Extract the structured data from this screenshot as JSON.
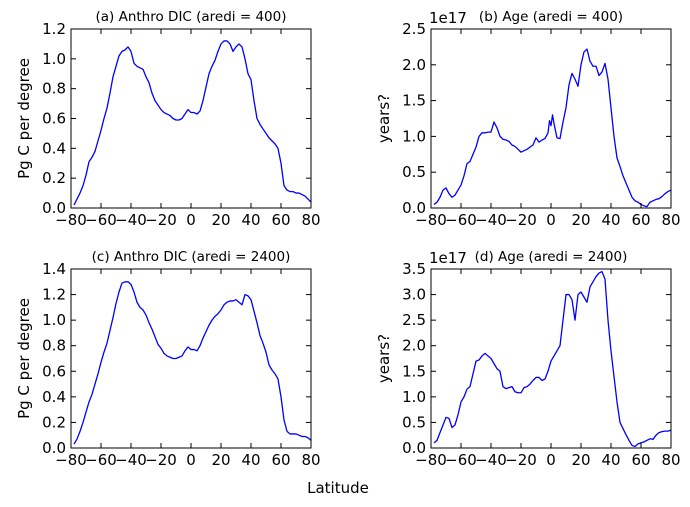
{
  "figure": {
    "xlabel": "Latitude"
  },
  "chart_data": [
    {
      "type": "line",
      "title": "(a) Anthro DIC (aredi = 400)",
      "xlabel": "",
      "ylabel": "Pg C per degree",
      "xlim": [
        -80,
        80
      ],
      "ylim": [
        0,
        1.2
      ],
      "xticks": [
        -80,
        -60,
        -40,
        -20,
        0,
        20,
        40,
        60,
        80
      ],
      "xtick_labels": [
        "−80",
        "−60",
        "−40",
        "−20",
        "0",
        "20",
        "40",
        "60",
        "80"
      ],
      "yticks": [
        0,
        0.2,
        0.4,
        0.6,
        0.8,
        1.0,
        1.2
      ],
      "ytick_labels": [
        "0.0",
        "0.2",
        "0.4",
        "0.6",
        "0.8",
        "1.0",
        "1.2"
      ],
      "offset_text": "",
      "grid": false,
      "color": "#0000ff",
      "series": [
        {
          "x": [
            -78,
            -76,
            -74,
            -72,
            -70,
            -68,
            -66,
            -64,
            -62,
            -60,
            -58,
            -56,
            -54,
            -52,
            -50,
            -48,
            -46,
            -44,
            -42,
            -40,
            -38,
            -36,
            -34,
            -32,
            -30,
            -28,
            -26,
            -24,
            -22,
            -20,
            -18,
            -16,
            -14,
            -12,
            -10,
            -8,
            -6,
            -4,
            -2,
            0,
            2,
            4,
            6,
            8,
            10,
            12,
            14,
            16,
            18,
            20,
            22,
            24,
            26,
            28,
            30,
            32,
            34,
            36,
            38,
            40,
            42,
            44,
            46,
            48,
            50,
            52,
            54,
            56,
            58,
            60,
            62,
            64,
            66,
            68,
            70,
            72,
            74,
            76,
            78,
            80
          ],
          "y": [
            0.02,
            0.06,
            0.1,
            0.15,
            0.22,
            0.31,
            0.34,
            0.38,
            0.45,
            0.52,
            0.6,
            0.67,
            0.77,
            0.88,
            0.95,
            1.02,
            1.05,
            1.06,
            1.08,
            1.05,
            0.97,
            0.95,
            0.94,
            0.93,
            0.88,
            0.84,
            0.77,
            0.72,
            0.69,
            0.66,
            0.64,
            0.63,
            0.62,
            0.6,
            0.59,
            0.59,
            0.6,
            0.63,
            0.66,
            0.64,
            0.64,
            0.63,
            0.65,
            0.72,
            0.81,
            0.9,
            0.95,
            0.99,
            1.05,
            1.1,
            1.12,
            1.12,
            1.1,
            1.05,
            1.08,
            1.1,
            1.08,
            1.0,
            0.9,
            0.86,
            0.72,
            0.6,
            0.56,
            0.53,
            0.5,
            0.47,
            0.45,
            0.43,
            0.4,
            0.3,
            0.15,
            0.12,
            0.11,
            0.11,
            0.1,
            0.1,
            0.09,
            0.08,
            0.06,
            0.04
          ]
        }
      ]
    },
    {
      "type": "line",
      "title": "(b) Age (aredi = 400)",
      "xlabel": "",
      "ylabel": "years?",
      "xlim": [
        -80,
        80
      ],
      "ylim": [
        0,
        2.5
      ],
      "xticks": [
        -80,
        -60,
        -40,
        -20,
        0,
        20,
        40,
        60,
        80
      ],
      "xtick_labels": [
        "−80",
        "−60",
        "−40",
        "−20",
        "0",
        "20",
        "40",
        "60",
        "80"
      ],
      "yticks": [
        0,
        0.5,
        1.0,
        1.5,
        2.0,
        2.5
      ],
      "ytick_labels": [
        "0.0",
        "0.5",
        "1.0",
        "1.5",
        "2.0",
        "2.5"
      ],
      "offset_text": "1e17",
      "grid": false,
      "color": "#0000ff",
      "series": [
        {
          "x": [
            -78,
            -76,
            -74,
            -72,
            -70,
            -68,
            -66,
            -64,
            -62,
            -60,
            -58,
            -56,
            -54,
            -52,
            -50,
            -48,
            -46,
            -44,
            -42,
            -40,
            -38,
            -36,
            -34,
            -32,
            -30,
            -28,
            -26,
            -24,
            -22,
            -20,
            -18,
            -16,
            -14,
            -12,
            -10,
            -8,
            -6,
            -4,
            -2,
            -1,
            0,
            1,
            2,
            4,
            6,
            8,
            10,
            12,
            14,
            16,
            18,
            20,
            22,
            24,
            26,
            28,
            30,
            32,
            34,
            36,
            38,
            40,
            42,
            44,
            46,
            48,
            50,
            52,
            54,
            56,
            58,
            60,
            62,
            64,
            66,
            68,
            70,
            72,
            74,
            76,
            78,
            80
          ],
          "y": [
            0.05,
            0.08,
            0.15,
            0.25,
            0.28,
            0.2,
            0.15,
            0.18,
            0.25,
            0.32,
            0.45,
            0.62,
            0.65,
            0.75,
            0.85,
            1.0,
            1.05,
            1.05,
            1.06,
            1.06,
            1.2,
            1.12,
            1.0,
            0.96,
            0.95,
            0.93,
            0.88,
            0.86,
            0.82,
            0.78,
            0.8,
            0.82,
            0.85,
            0.88,
            0.98,
            0.92,
            0.95,
            0.97,
            1.05,
            1.22,
            1.15,
            1.3,
            1.18,
            0.98,
            0.97,
            1.2,
            1.4,
            1.72,
            1.88,
            1.8,
            1.7,
            2.0,
            2.18,
            2.22,
            2.05,
            1.98,
            1.98,
            1.85,
            1.9,
            2.02,
            1.8,
            1.4,
            1.0,
            0.7,
            0.58,
            0.45,
            0.35,
            0.25,
            0.15,
            0.1,
            0.08,
            0.05,
            0.03,
            0.02,
            0.08,
            0.1,
            0.12,
            0.13,
            0.16,
            0.2,
            0.23,
            0.25
          ]
        }
      ]
    },
    {
      "type": "line",
      "title": "(c) Anthro DIC (aredi = 2400)",
      "xlabel": "",
      "ylabel": "Pg C per degree",
      "xlim": [
        -80,
        80
      ],
      "ylim": [
        0,
        1.4
      ],
      "xticks": [
        -80,
        -60,
        -40,
        -20,
        0,
        20,
        40,
        60,
        80
      ],
      "xtick_labels": [
        "−80",
        "−60",
        "−40",
        "−20",
        "0",
        "20",
        "40",
        "60",
        "80"
      ],
      "yticks": [
        0,
        0.2,
        0.4,
        0.6,
        0.8,
        1.0,
        1.2,
        1.4
      ],
      "ytick_labels": [
        "0.0",
        "0.2",
        "0.4",
        "0.6",
        "0.8",
        "1.0",
        "1.2",
        "1.4"
      ],
      "offset_text": "",
      "grid": false,
      "color": "#0000ff",
      "series": [
        {
          "x": [
            -78,
            -76,
            -74,
            -72,
            -70,
            -68,
            -66,
            -64,
            -62,
            -60,
            -58,
            -56,
            -54,
            -52,
            -50,
            -48,
            -46,
            -44,
            -42,
            -40,
            -38,
            -36,
            -34,
            -32,
            -30,
            -28,
            -26,
            -24,
            -22,
            -20,
            -18,
            -16,
            -14,
            -12,
            -10,
            -8,
            -6,
            -4,
            -2,
            0,
            2,
            4,
            6,
            8,
            10,
            12,
            14,
            16,
            18,
            20,
            22,
            24,
            26,
            28,
            30,
            32,
            34,
            36,
            38,
            40,
            42,
            44,
            46,
            48,
            50,
            52,
            54,
            56,
            58,
            60,
            62,
            64,
            66,
            68,
            70,
            72,
            74,
            76,
            78,
            80
          ],
          "y": [
            0.03,
            0.07,
            0.13,
            0.2,
            0.28,
            0.36,
            0.42,
            0.5,
            0.58,
            0.67,
            0.75,
            0.82,
            0.92,
            1.02,
            1.13,
            1.22,
            1.29,
            1.3,
            1.3,
            1.28,
            1.22,
            1.14,
            1.1,
            1.08,
            1.04,
            0.98,
            0.93,
            0.87,
            0.81,
            0.78,
            0.74,
            0.72,
            0.71,
            0.7,
            0.7,
            0.71,
            0.72,
            0.76,
            0.79,
            0.77,
            0.77,
            0.76,
            0.8,
            0.86,
            0.91,
            0.96,
            1.0,
            1.03,
            1.05,
            1.08,
            1.12,
            1.14,
            1.15,
            1.15,
            1.16,
            1.14,
            1.12,
            1.2,
            1.19,
            1.16,
            1.07,
            0.98,
            0.88,
            0.82,
            0.75,
            0.65,
            0.61,
            0.58,
            0.54,
            0.4,
            0.22,
            0.13,
            0.11,
            0.11,
            0.11,
            0.1,
            0.09,
            0.09,
            0.08,
            0.06
          ]
        }
      ]
    },
    {
      "type": "line",
      "title": "(d) Age (aredi = 2400)",
      "xlabel": "",
      "ylabel": "years?",
      "xlim": [
        -80,
        80
      ],
      "ylim": [
        0,
        3.5
      ],
      "xticks": [
        -80,
        -60,
        -40,
        -20,
        0,
        20,
        40,
        60,
        80
      ],
      "xtick_labels": [
        "−80",
        "−60",
        "−40",
        "−20",
        "0",
        "20",
        "40",
        "60",
        "80"
      ],
      "yticks": [
        0,
        0.5,
        1.0,
        1.5,
        2.0,
        2.5,
        3.0,
        3.5
      ],
      "ytick_labels": [
        "0.0",
        "0.5",
        "1.0",
        "1.5",
        "2.0",
        "2.5",
        "3.0",
        "3.5"
      ],
      "offset_text": "1e17",
      "grid": false,
      "color": "#0000ff",
      "series": [
        {
          "x": [
            -78,
            -76,
            -74,
            -72,
            -70,
            -68,
            -66,
            -64,
            -62,
            -60,
            -58,
            -56,
            -54,
            -52,
            -50,
            -48,
            -46,
            -44,
            -42,
            -40,
            -38,
            -36,
            -34,
            -32,
            -30,
            -28,
            -26,
            -24,
            -22,
            -20,
            -18,
            -16,
            -14,
            -12,
            -10,
            -8,
            -6,
            -4,
            -2,
            0,
            2,
            4,
            6,
            8,
            10,
            12,
            14,
            16,
            18,
            20,
            22,
            24,
            26,
            28,
            30,
            32,
            34,
            36,
            38,
            40,
            42,
            44,
            46,
            48,
            50,
            52,
            54,
            56,
            58,
            60,
            62,
            64,
            66,
            68,
            70,
            72,
            74,
            76,
            78,
            80
          ],
          "y": [
            0.1,
            0.15,
            0.3,
            0.45,
            0.6,
            0.58,
            0.4,
            0.45,
            0.65,
            0.9,
            1.0,
            1.15,
            1.2,
            1.45,
            1.7,
            1.72,
            1.8,
            1.85,
            1.8,
            1.75,
            1.65,
            1.55,
            1.5,
            1.2,
            1.16,
            1.18,
            1.2,
            1.1,
            1.08,
            1.08,
            1.18,
            1.2,
            1.25,
            1.32,
            1.38,
            1.38,
            1.32,
            1.35,
            1.5,
            1.7,
            1.8,
            1.9,
            2.0,
            2.5,
            3.0,
            3.0,
            2.9,
            2.5,
            3.0,
            3.05,
            2.95,
            2.85,
            3.15,
            3.25,
            3.35,
            3.42,
            3.45,
            3.3,
            2.5,
            1.9,
            1.4,
            0.9,
            0.5,
            0.38,
            0.26,
            0.15,
            0.05,
            0.03,
            0.08,
            0.1,
            0.12,
            0.15,
            0.18,
            0.17,
            0.25,
            0.3,
            0.32,
            0.33,
            0.33,
            0.35
          ]
        }
      ]
    }
  ]
}
